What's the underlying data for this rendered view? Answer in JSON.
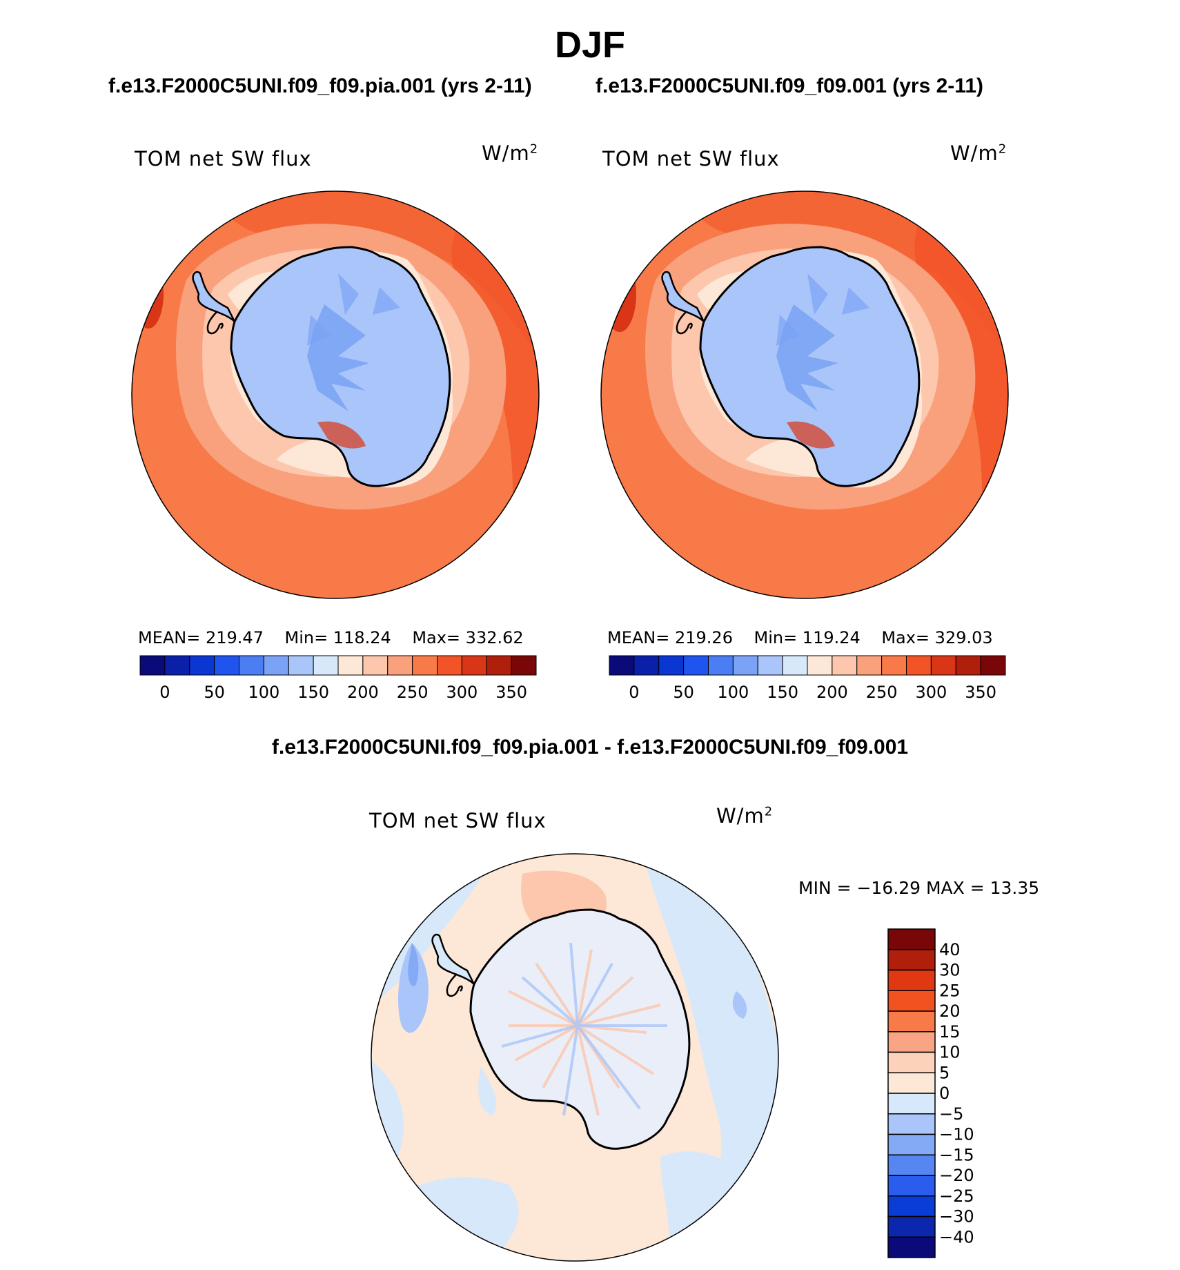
{
  "title": "DJF",
  "panels": [
    {
      "id": "pia",
      "case_title": "f.e13.F2000C5UNI.f09_f09.pia.001 (yrs 2-11)",
      "variable": "TOM net SW flux",
      "units": "W/m",
      "units_exp": "2",
      "mean_text": "MEAN= 219.47",
      "min_text": "Min= 118.24",
      "max_text": "Max= 332.62"
    },
    {
      "id": "ctrl",
      "case_title": "f.e13.F2000C5UNI.f09_f09.001 (yrs 2-11)",
      "variable": "TOM net SW flux",
      "units": "W/m",
      "units_exp": "2",
      "mean_text": "MEAN= 219.26",
      "min_text": "Min= 119.24",
      "max_text": "Max= 329.03"
    }
  ],
  "abs_colorbar": {
    "colors": [
      "#0a0a78",
      "#0b20a8",
      "#0a36d2",
      "#1f55ee",
      "#4b7ef2",
      "#7aa2f5",
      "#aac5f9",
      "#d7e8fa",
      "#fde7d6",
      "#fcc7ac",
      "#f9a07d",
      "#f77a48",
      "#f25428",
      "#d83616",
      "#b01f0c",
      "#7a0707"
    ],
    "tick_labels": [
      "0",
      "50",
      "100",
      "150",
      "200",
      "250",
      "300",
      "350"
    ]
  },
  "difference": {
    "title": "f.e13.F2000C5UNI.f09_f09.pia.001 - f.e13.F2000C5UNI.f09_f09.001",
    "variable": "TOM net SW flux",
    "units": "W/m",
    "units_exp": "2",
    "minmax_text": "MIN = −16.29 MAX =  13.35",
    "colorbar": {
      "colors": [
        "#7a0707",
        "#b01f0c",
        "#e03812",
        "#f2521f",
        "#f77a48",
        "#f9a585",
        "#fdd2bb",
        "#fde8d8",
        "#d7e8fa",
        "#aac5f9",
        "#84aaf6",
        "#5586f1",
        "#2a5ded",
        "#0a3cd6",
        "#0a27ad",
        "#0a0a78"
      ],
      "tick_labels": [
        "40",
        "30",
        "25",
        "20",
        "15",
        "10",
        "5",
        "0",
        "−5",
        "−10",
        "−15",
        "−20",
        "−25",
        "−30",
        "−40"
      ]
    }
  }
}
